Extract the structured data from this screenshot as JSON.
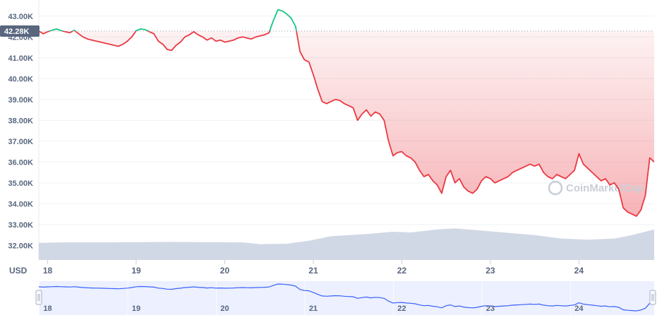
{
  "chart_data": {
    "type": "line",
    "y_unit_label": "USD",
    "current_price_label": "42.28K",
    "reference_price": 42280,
    "y_ticks": [
      {
        "label": "43.00K",
        "value": 43000
      },
      {
        "label": "42.00K",
        "value": 42000
      },
      {
        "label": "41.00K",
        "value": 41000
      },
      {
        "label": "40.00K",
        "value": 40000
      },
      {
        "label": "39.00K",
        "value": 39000
      },
      {
        "label": "38.00K",
        "value": 38000
      },
      {
        "label": "37.00K",
        "value": 37000
      },
      {
        "label": "36.00K",
        "value": 36000
      },
      {
        "label": "35.00K",
        "value": 35000
      },
      {
        "label": "34.00K",
        "value": 34000
      },
      {
        "label": "33.00K",
        "value": 33000
      },
      {
        "label": "32.00K",
        "value": 32000
      }
    ],
    "x_ticks": [
      {
        "label": "18",
        "day": 18
      },
      {
        "label": "19",
        "day": 19
      },
      {
        "label": "20",
        "day": 20
      },
      {
        "label": "21",
        "day": 21
      },
      {
        "label": "22",
        "day": 22
      },
      {
        "label": "23",
        "day": 23
      },
      {
        "label": "24",
        "day": 24
      }
    ],
    "ylim": [
      31300,
      43500
    ],
    "xlim": [
      17.9,
      24.85
    ],
    "colors": {
      "up": "#16c784",
      "down": "#ea3943",
      "volume": "#cfd6e4",
      "navigator_line": "#3861fb",
      "navigator_fill": "#dde3ff"
    },
    "price_series": [
      [
        17.9,
        42280
      ],
      [
        17.95,
        42150
      ],
      [
        18.0,
        42250
      ],
      [
        18.05,
        42320
      ],
      [
        18.1,
        42380
      ],
      [
        18.15,
        42300
      ],
      [
        18.2,
        42250
      ],
      [
        18.25,
        42200
      ],
      [
        18.3,
        42320
      ],
      [
        18.35,
        42150
      ],
      [
        18.4,
        42000
      ],
      [
        18.45,
        41900
      ],
      [
        18.5,
        41850
      ],
      [
        18.55,
        41800
      ],
      [
        18.6,
        41750
      ],
      [
        18.65,
        41700
      ],
      [
        18.7,
        41650
      ],
      [
        18.75,
        41600
      ],
      [
        18.8,
        41550
      ],
      [
        18.85,
        41650
      ],
      [
        18.9,
        41800
      ],
      [
        18.95,
        42000
      ],
      [
        19.0,
        42300
      ],
      [
        19.05,
        42380
      ],
      [
        19.1,
        42350
      ],
      [
        19.15,
        42250
      ],
      [
        19.2,
        42150
      ],
      [
        19.25,
        41800
      ],
      [
        19.3,
        41650
      ],
      [
        19.35,
        41400
      ],
      [
        19.4,
        41350
      ],
      [
        19.45,
        41600
      ],
      [
        19.5,
        41750
      ],
      [
        19.55,
        42000
      ],
      [
        19.6,
        42100
      ],
      [
        19.65,
        42250
      ],
      [
        19.7,
        42100
      ],
      [
        19.75,
        42000
      ],
      [
        19.8,
        41850
      ],
      [
        19.85,
        41950
      ],
      [
        19.9,
        41800
      ],
      [
        19.95,
        41850
      ],
      [
        20.0,
        41750
      ],
      [
        20.05,
        41800
      ],
      [
        20.1,
        41850
      ],
      [
        20.15,
        41950
      ],
      [
        20.2,
        42000
      ],
      [
        20.25,
        41950
      ],
      [
        20.3,
        41900
      ],
      [
        20.35,
        42000
      ],
      [
        20.4,
        42050
      ],
      [
        20.45,
        42100
      ],
      [
        20.5,
        42200
      ],
      [
        20.55,
        42800
      ],
      [
        20.6,
        43300
      ],
      [
        20.65,
        43250
      ],
      [
        20.7,
        43100
      ],
      [
        20.75,
        42900
      ],
      [
        20.8,
        42500
      ],
      [
        20.85,
        41300
      ],
      [
        20.9,
        40900
      ],
      [
        20.95,
        40800
      ],
      [
        21.0,
        40200
      ],
      [
        21.05,
        39500
      ],
      [
        21.1,
        38900
      ],
      [
        21.15,
        38800
      ],
      [
        21.2,
        38900
      ],
      [
        21.25,
        39000
      ],
      [
        21.3,
        38950
      ],
      [
        21.35,
        38800
      ],
      [
        21.4,
        38700
      ],
      [
        21.45,
        38600
      ],
      [
        21.5,
        38000
      ],
      [
        21.55,
        38300
      ],
      [
        21.6,
        38500
      ],
      [
        21.65,
        38200
      ],
      [
        21.7,
        38400
      ],
      [
        21.75,
        38300
      ],
      [
        21.8,
        38000
      ],
      [
        21.85,
        37000
      ],
      [
        21.9,
        36300
      ],
      [
        21.95,
        36450
      ],
      [
        22.0,
        36500
      ],
      [
        22.05,
        36300
      ],
      [
        22.1,
        36200
      ],
      [
        22.15,
        36000
      ],
      [
        22.2,
        35600
      ],
      [
        22.25,
        35300
      ],
      [
        22.3,
        35400
      ],
      [
        22.35,
        35100
      ],
      [
        22.4,
        34900
      ],
      [
        22.45,
        34500
      ],
      [
        22.5,
        35300
      ],
      [
        22.55,
        35600
      ],
      [
        22.6,
        35000
      ],
      [
        22.65,
        35200
      ],
      [
        22.7,
        34800
      ],
      [
        22.75,
        34600
      ],
      [
        22.8,
        34500
      ],
      [
        22.85,
        34700
      ],
      [
        22.9,
        35100
      ],
      [
        22.95,
        35300
      ],
      [
        23.0,
        35200
      ],
      [
        23.05,
        35000
      ],
      [
        23.1,
        35100
      ],
      [
        23.15,
        35200
      ],
      [
        23.2,
        35300
      ],
      [
        23.25,
        35500
      ],
      [
        23.3,
        35600
      ],
      [
        23.35,
        35700
      ],
      [
        23.4,
        35800
      ],
      [
        23.45,
        35900
      ],
      [
        23.5,
        35800
      ],
      [
        23.55,
        35900
      ],
      [
        23.6,
        35500
      ],
      [
        23.65,
        35300
      ],
      [
        23.7,
        35200
      ],
      [
        23.75,
        35400
      ],
      [
        23.8,
        35300
      ],
      [
        23.85,
        35200
      ],
      [
        23.9,
        35400
      ],
      [
        23.95,
        35600
      ],
      [
        24.0,
        36400
      ],
      [
        24.05,
        35900
      ],
      [
        24.1,
        35700
      ],
      [
        24.15,
        35500
      ],
      [
        24.2,
        35300
      ],
      [
        24.25,
        35100
      ],
      [
        24.3,
        35200
      ],
      [
        24.35,
        34900
      ],
      [
        24.4,
        35000
      ],
      [
        24.45,
        34700
      ],
      [
        24.5,
        33800
      ],
      [
        24.55,
        33600
      ],
      [
        24.6,
        33500
      ],
      [
        24.65,
        33400
      ],
      [
        24.7,
        33700
      ],
      [
        24.75,
        34400
      ],
      [
        24.8,
        36200
      ],
      [
        24.85,
        36000
      ]
    ],
    "volume_series": [
      [
        17.9,
        0.76
      ],
      [
        18.2,
        0.78
      ],
      [
        18.6,
        0.78
      ],
      [
        19.0,
        0.79
      ],
      [
        19.4,
        0.8
      ],
      [
        19.8,
        0.79
      ],
      [
        20.2,
        0.78
      ],
      [
        20.4,
        0.7
      ],
      [
        20.7,
        0.72
      ],
      [
        20.95,
        0.85
      ],
      [
        21.2,
        1.05
      ],
      [
        21.6,
        1.15
      ],
      [
        21.9,
        1.25
      ],
      [
        22.1,
        1.22
      ],
      [
        22.4,
        1.35
      ],
      [
        22.6,
        1.4
      ],
      [
        22.9,
        1.3
      ],
      [
        23.2,
        1.2
      ],
      [
        23.5,
        1.1
      ],
      [
        23.8,
        0.95
      ],
      [
        24.1,
        0.9
      ],
      [
        24.4,
        0.95
      ],
      [
        24.6,
        1.1
      ],
      [
        24.85,
        1.35
      ]
    ]
  },
  "navigator": {
    "x_ticks": [
      "18",
      "19",
      "20",
      "21",
      "22",
      "23",
      "24"
    ]
  },
  "watermark": {
    "text": "CoinMarketCap"
  }
}
